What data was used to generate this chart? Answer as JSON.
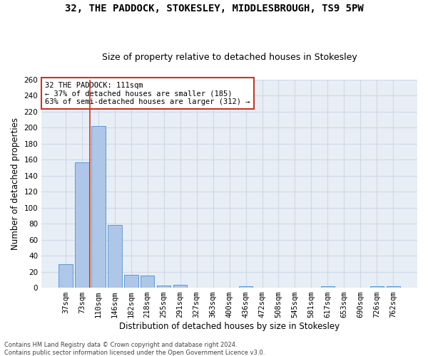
{
  "title": "32, THE PADDOCK, STOKESLEY, MIDDLESBROUGH, TS9 5PW",
  "subtitle": "Size of property relative to detached houses in Stokesley",
  "xlabel": "Distribution of detached houses by size in Stokesley",
  "ylabel": "Number of detached properties",
  "categories": [
    "37sqm",
    "73sqm",
    "110sqm",
    "146sqm",
    "182sqm",
    "218sqm",
    "255sqm",
    "291sqm",
    "327sqm",
    "363sqm",
    "400sqm",
    "436sqm",
    "472sqm",
    "508sqm",
    "545sqm",
    "581sqm",
    "617sqm",
    "653sqm",
    "690sqm",
    "726sqm",
    "762sqm"
  ],
  "values": [
    29,
    157,
    202,
    78,
    16,
    15,
    3,
    4,
    0,
    0,
    0,
    2,
    0,
    0,
    0,
    0,
    2,
    0,
    0,
    2,
    2
  ],
  "bar_color": "#aec6e8",
  "bar_edge_color": "#5b9bd5",
  "grid_color": "#d0d8e8",
  "vline_x_index": 1.5,
  "vline_color": "#c0392b",
  "annotation_text": "32 THE PADDOCK: 111sqm\n← 37% of detached houses are smaller (185)\n63% of semi-detached houses are larger (312) →",
  "annotation_box_color": "white",
  "annotation_box_edge": "#c0392b",
  "footer": "Contains HM Land Registry data © Crown copyright and database right 2024.\nContains public sector information licensed under the Open Government Licence v3.0.",
  "ylim": [
    0,
    260
  ],
  "yticks": [
    0,
    20,
    40,
    60,
    80,
    100,
    120,
    140,
    160,
    180,
    200,
    220,
    240,
    260
  ],
  "bg_color": "#e8eef5",
  "fig_bg_color": "#ffffff",
  "title_fontsize": 10,
  "subtitle_fontsize": 9,
  "tick_fontsize": 7.5,
  "ylabel_fontsize": 8.5,
  "xlabel_fontsize": 8.5,
  "annot_fontsize": 7.5,
  "footer_fontsize": 6
}
